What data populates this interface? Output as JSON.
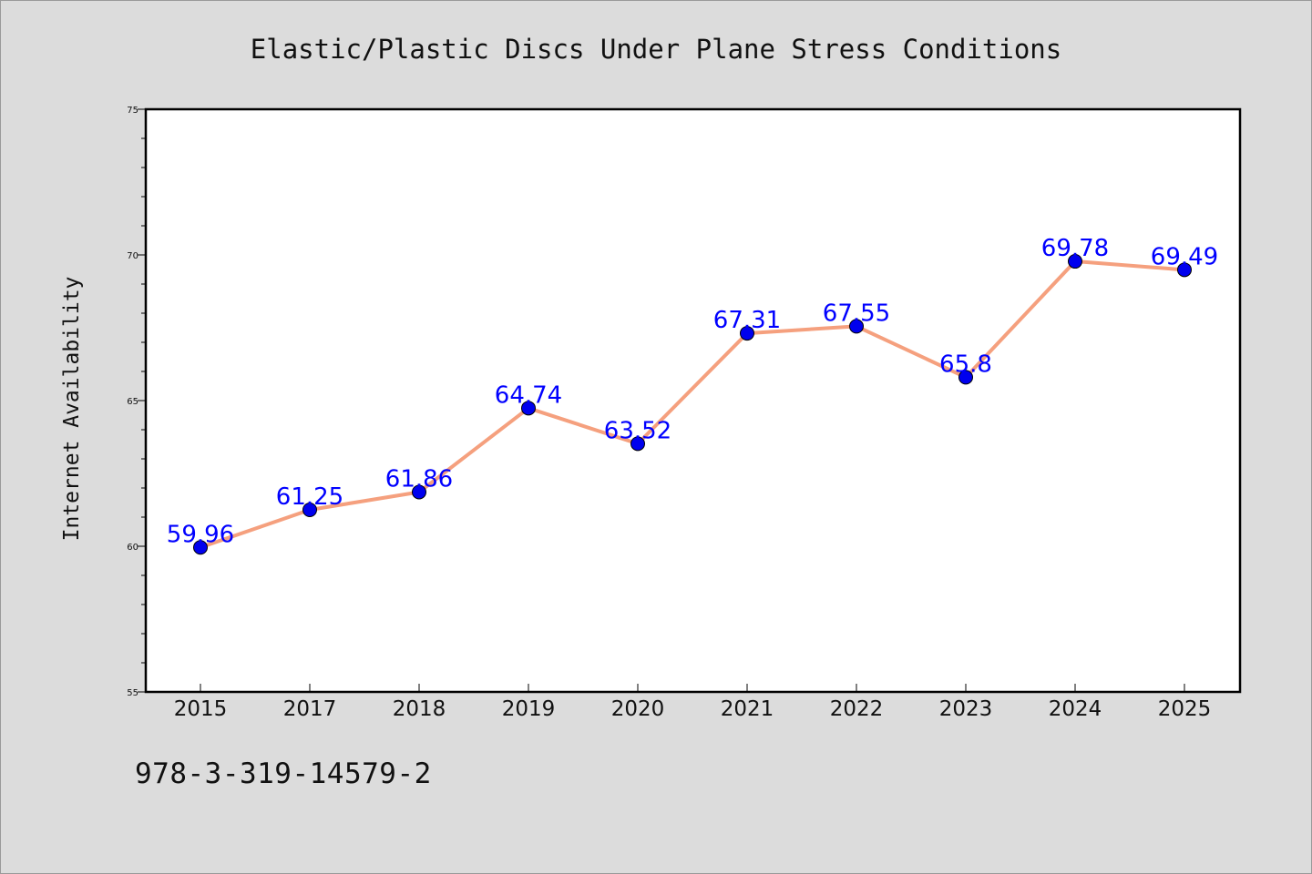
{
  "isbn": "978-3-319-14579-2",
  "colors": {
    "line": "#f5a07e",
    "marker": "#0000ee",
    "label": "#0000ff",
    "background": "#dcdcdc",
    "plot_background": "#ffffff"
  },
  "chart_data": {
    "type": "line",
    "title": "Elastic/Plastic Discs Under Plane Stress Conditions",
    "xlabel": "",
    "ylabel": "Internet Availability",
    "categories": [
      "2015",
      "2017",
      "2018",
      "2019",
      "2020",
      "2021",
      "2022",
      "2023",
      "2024",
      "2025"
    ],
    "series": [
      {
        "values": [
          59.96,
          61.25,
          61.86,
          64.74,
          63.52,
          67.31,
          67.55,
          65.8,
          69.78,
          69.49
        ]
      }
    ],
    "data_labels": [
      "59.96",
      "61.25",
      "61.86",
      "64.74",
      "63.52",
      "67.31",
      "67.55",
      "65.8",
      "69.78",
      "69.49"
    ],
    "ylim": [
      55,
      75
    ],
    "yticks": [
      "55",
      "60",
      "65",
      "70",
      "75"
    ],
    "grid": false,
    "legend": "none"
  }
}
